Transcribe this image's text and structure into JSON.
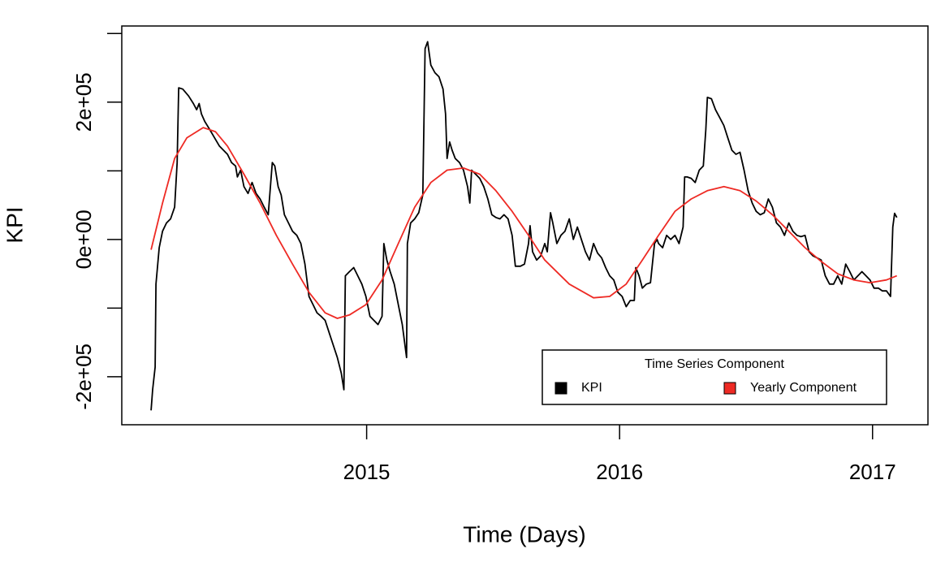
{
  "chart_data": {
    "type": "line",
    "x_label": "Time (Days)",
    "y_label": "KPI",
    "xlim": [
      2014.032,
      2017.219
    ],
    "xticks": [
      2015,
      2016,
      2017
    ],
    "ylim": [
      -270000,
      311000
    ],
    "yticks": [
      {
        "value": -200000,
        "label": "-2e+05"
      },
      {
        "value": 0,
        "label": "0e+00"
      },
      {
        "value": 200000,
        "label": "2e+05"
      }
    ],
    "yminor_ticks": [
      -100000,
      100000,
      300000
    ],
    "legend_title": "Time Series Component",
    "legend_position": "bottomright",
    "series": [
      {
        "name": "KPI",
        "color": "#000000",
        "x": [
          2014.148,
          2014.154,
          2014.164,
          2014.167,
          2014.18,
          2014.193,
          2014.209,
          2014.225,
          2014.241,
          2014.251,
          2014.257,
          2014.273,
          2014.296,
          2014.315,
          2014.328,
          2014.338,
          2014.347,
          2014.36,
          2014.38,
          2014.402,
          2014.418,
          2014.434,
          2014.45,
          2014.466,
          2014.482,
          2014.489,
          2014.502,
          2014.515,
          2014.531,
          2014.547,
          2014.563,
          2014.579,
          2014.595,
          2014.611,
          2014.627,
          2014.637,
          2014.65,
          2014.662,
          2014.675,
          2014.691,
          2014.707,
          2014.724,
          2014.74,
          2014.756,
          2014.772,
          2014.788,
          2014.804,
          2014.82,
          2014.836,
          2014.852,
          2014.868,
          2014.884,
          2014.9,
          2014.91,
          2014.916,
          2014.932,
          2014.949,
          2014.965,
          2014.981,
          2014.997,
          2015.013,
          2015.029,
          2015.045,
          2015.061,
          2015.068,
          2015.08,
          2015.093,
          2015.109,
          2015.125,
          2015.141,
          2015.158,
          2015.161,
          2015.174,
          2015.19,
          2015.206,
          2015.222,
          2015.231,
          2015.241,
          2015.254,
          2015.27,
          2015.286,
          2015.302,
          2015.312,
          2015.318,
          2015.328,
          2015.338,
          2015.35,
          2015.367,
          2015.383,
          2015.399,
          2015.408,
          2015.415,
          2015.431,
          2015.447,
          2015.463,
          2015.479,
          2015.495,
          2015.511,
          2015.527,
          2015.543,
          2015.559,
          2015.575,
          2015.588,
          2015.608,
          2015.624,
          2015.64,
          2015.646,
          2015.656,
          2015.672,
          2015.688,
          2015.704,
          2015.714,
          2015.727,
          2015.736,
          2015.752,
          2015.768,
          2015.784,
          2015.801,
          2015.817,
          2015.833,
          2015.849,
          2015.865,
          2015.881,
          2015.897,
          2015.913,
          2015.929,
          2015.945,
          2015.961,
          2015.977,
          2015.993,
          2016.01,
          2016.026,
          2016.042,
          2016.058,
          2016.064,
          2016.077,
          2016.09,
          2016.106,
          2016.122,
          2016.138,
          2016.148,
          2016.154,
          2016.17,
          2016.186,
          2016.202,
          2016.219,
          2016.235,
          2016.251,
          2016.257,
          2016.267,
          2016.283,
          2016.299,
          2016.315,
          2016.331,
          2016.341,
          2016.347,
          2016.363,
          2016.379,
          2016.395,
          2016.412,
          2016.428,
          2016.444,
          2016.46,
          2016.476,
          2016.492,
          2016.508,
          2016.524,
          2016.54,
          2016.556,
          2016.572,
          2016.588,
          2016.604,
          2016.62,
          2016.636,
          2016.652,
          2016.669,
          2016.685,
          2016.701,
          2016.717,
          2016.733,
          2016.749,
          2016.765,
          2016.781,
          2016.797,
          2016.813,
          2016.83,
          2016.846,
          2016.862,
          2016.878,
          2016.894,
          2016.91,
          2016.926,
          2016.942,
          2016.958,
          2016.974,
          2016.99,
          2017.006,
          2017.023,
          2017.039,
          2017.055,
          2017.071,
          2017.08,
          2017.087,
          2017.096
        ],
        "values": [
          -249000,
          -219000,
          -186000,
          -65000,
          -12000,
          12000,
          24000,
          30000,
          47000,
          112000,
          221000,
          219000,
          209000,
          198000,
          189000,
          198000,
          183000,
          172000,
          160000,
          146000,
          136000,
          130000,
          124000,
          112000,
          107000,
          91000,
          101000,
          77000,
          67000,
          83000,
          67000,
          59000,
          47000,
          36000,
          112000,
          107000,
          77000,
          65000,
          36000,
          24000,
          12000,
          6000,
          -6000,
          -36000,
          -83000,
          -95000,
          -107000,
          -112000,
          -118000,
          -136000,
          -154000,
          -172000,
          -195000,
          -219000,
          -53000,
          -47000,
          -41000,
          -53000,
          -65000,
          -83000,
          -112000,
          -118000,
          -124000,
          -112000,
          -6000,
          -30000,
          -47000,
          -65000,
          -95000,
          -124000,
          -172000,
          -6000,
          24000,
          30000,
          39000,
          65000,
          278000,
          288000,
          254000,
          243000,
          237000,
          219000,
          183000,
          118000,
          142000,
          130000,
          118000,
          112000,
          101000,
          77000,
          53000,
          101000,
          95000,
          89000,
          77000,
          59000,
          36000,
          32000,
          30000,
          36000,
          30000,
          6000,
          -39000,
          -39000,
          -36000,
          -6000,
          20000,
          -18000,
          -30000,
          -24000,
          -6000,
          -18000,
          39000,
          24000,
          -6000,
          6000,
          12000,
          30000,
          0,
          18000,
          0,
          -18000,
          -30000,
          -6000,
          -20000,
          -27000,
          -41000,
          -53000,
          -59000,
          -77000,
          -83000,
          -98000,
          -89000,
          -89000,
          -41000,
          -53000,
          -71000,
          -65000,
          -63000,
          -6000,
          0,
          -6000,
          -12000,
          6000,
          0,
          6000,
          -6000,
          18000,
          91000,
          91000,
          89000,
          83000,
          101000,
          107000,
          160000,
          207000,
          205000,
          189000,
          178000,
          166000,
          148000,
          130000,
          124000,
          127000,
          101000,
          71000,
          53000,
          41000,
          36000,
          39000,
          59000,
          47000,
          24000,
          18000,
          6000,
          24000,
          12000,
          6000,
          4000,
          6000,
          -18000,
          -24000,
          -27000,
          -30000,
          -53000,
          -65000,
          -65000,
          -53000,
          -65000,
          -36000,
          -47000,
          -59000,
          -53000,
          -47000,
          -53000,
          -59000,
          -71000,
          -71000,
          -75000,
          -75000,
          -83000,
          18000,
          38000,
          32000
        ]
      },
      {
        "name": "Yearly Component",
        "color": "#ee2a24",
        "x": [
          2014.148,
          2014.193,
          2014.241,
          2014.289,
          2014.354,
          2014.402,
          2014.45,
          2014.515,
          2014.579,
          2014.643,
          2014.707,
          2014.772,
          2014.836,
          2014.884,
          2014.932,
          2014.997,
          2015.061,
          2015.125,
          2015.19,
          2015.254,
          2015.318,
          2015.383,
          2015.447,
          2015.511,
          2015.575,
          2015.64,
          2015.704,
          2015.801,
          2015.897,
          2015.961,
          2016.026,
          2016.09,
          2016.154,
          2016.219,
          2016.283,
          2016.347,
          2016.412,
          2016.476,
          2016.54,
          2016.604,
          2016.669,
          2016.733,
          2016.797,
          2016.862,
          2016.926,
          2016.99,
          2017.055,
          2017.096
        ],
        "values": [
          -15000,
          53000,
          118000,
          148000,
          163000,
          157000,
          136000,
          95000,
          53000,
          6000,
          -36000,
          -77000,
          -107000,
          -115000,
          -110000,
          -95000,
          -59000,
          -6000,
          47000,
          83000,
          101000,
          104000,
          95000,
          71000,
          41000,
          6000,
          -30000,
          -65000,
          -85000,
          -83000,
          -65000,
          -30000,
          6000,
          41000,
          59000,
          71000,
          77000,
          71000,
          56000,
          36000,
          12000,
          -12000,
          -32000,
          -50000,
          -59000,
          -63000,
          -59000,
          -53000
        ]
      }
    ]
  }
}
